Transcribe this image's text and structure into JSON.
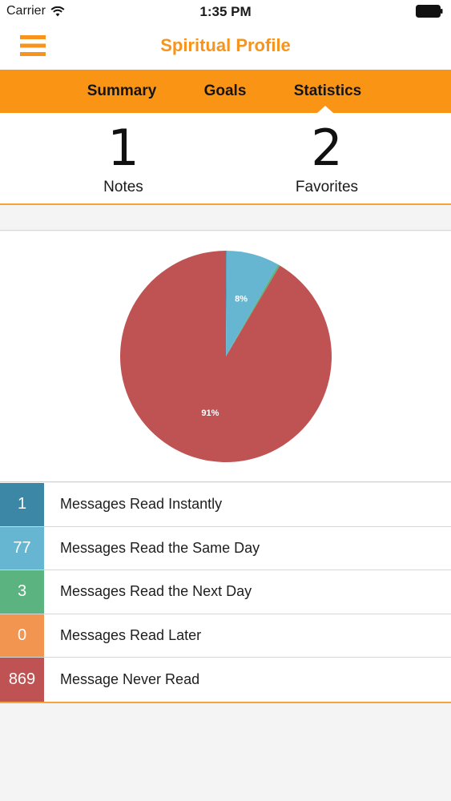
{
  "status_bar": {
    "carrier": "Carrier",
    "time": "1:35 PM"
  },
  "nav": {
    "title": "Spiritual Profile",
    "menu_icon": "hamburger-menu-icon",
    "accent_color": "#f7941d"
  },
  "tabs": [
    {
      "label": "Summary",
      "active": false
    },
    {
      "label": "Goals",
      "active": false
    },
    {
      "label": "Statistics",
      "active": true
    }
  ],
  "counts": {
    "notes": {
      "value": "1",
      "label": "Notes"
    },
    "favorites": {
      "value": "2",
      "label": "Favorites"
    }
  },
  "chart_data": {
    "type": "pie",
    "slices": [
      {
        "value": 1,
        "color": "#3b87a5",
        "label": ""
      },
      {
        "value": 77,
        "color": "#66b6d2",
        "label": "8%"
      },
      {
        "value": 3,
        "color": "#5bb47f",
        "label": ""
      },
      {
        "value": 0,
        "color": "#f29550",
        "label": ""
      },
      {
        "value": 869,
        "color": "#bf5353",
        "label": "91%"
      }
    ]
  },
  "legend": [
    {
      "value": "1",
      "label": "Messages Read Instantly",
      "color": "#3b87a5"
    },
    {
      "value": "77",
      "label": "Messages Read the Same Day",
      "color": "#66b6d2"
    },
    {
      "value": "3",
      "label": "Messages Read the Next Day",
      "color": "#5bb47f"
    },
    {
      "value": "0",
      "label": "Messages Read Later",
      "color": "#f29550"
    },
    {
      "value": "869",
      "label": "Message Never Read",
      "color": "#bf5353"
    }
  ]
}
